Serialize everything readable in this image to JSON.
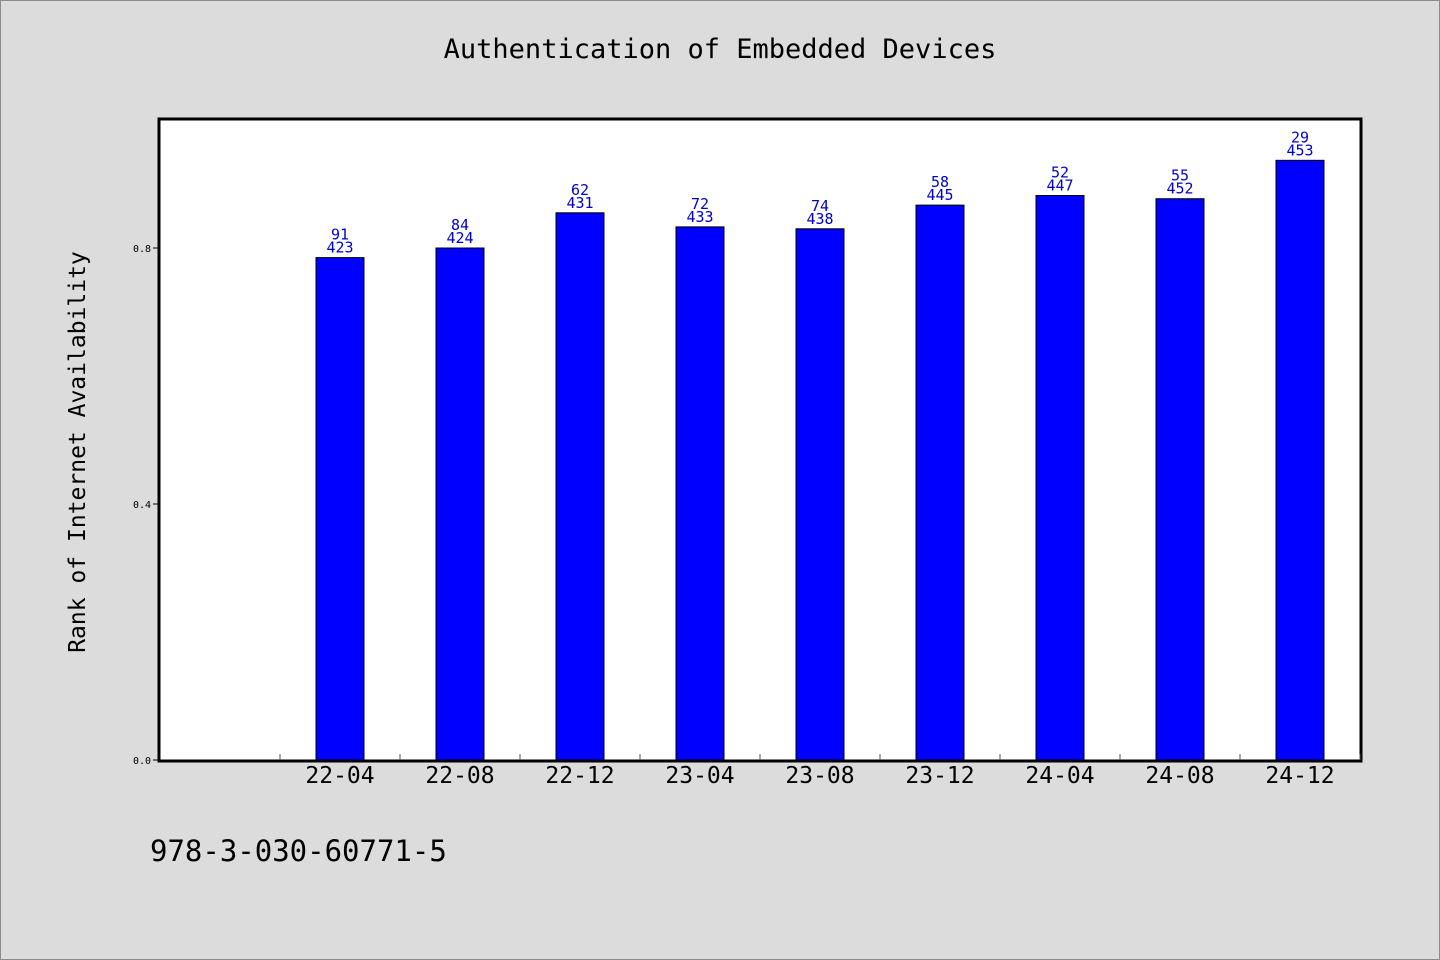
{
  "chart_data": {
    "type": "bar",
    "title": "Authentication of Embedded Devices",
    "xlabel": "",
    "ylabel": "Rank of Internet Availability",
    "categories": [
      "22-04",
      "22-08",
      "22-12",
      "23-04",
      "23-08",
      "23-12",
      "24-04",
      "24-08",
      "24-12"
    ],
    "series": [
      {
        "values": [
          0.785,
          0.8,
          0.855,
          0.833,
          0.83,
          0.867,
          0.882,
          0.877,
          0.937
        ],
        "bar_labels_top": [
          "91",
          "84",
          "62",
          "72",
          "74",
          "58",
          "52",
          "55",
          "29"
        ],
        "bar_labels_bottom": [
          "423",
          "424",
          "431",
          "433",
          "438",
          "445",
          "447",
          "452",
          "453"
        ]
      }
    ],
    "ylim": [
      0,
      1.0
    ],
    "yticks": [
      0.0,
      0.4,
      0.8
    ],
    "ytick_labels": [
      "0.0",
      "0.4",
      "0.8"
    ],
    "grid": false,
    "legend": "none",
    "colors": {
      "bar_fill": "#0000ff",
      "bar_stroke": "#000000",
      "bar_label": "#0000cc",
      "plot_bg": "#ffffff",
      "page_bg": "#dcdcdc"
    }
  },
  "footer": {
    "text": "978-3-030-60771-5"
  }
}
